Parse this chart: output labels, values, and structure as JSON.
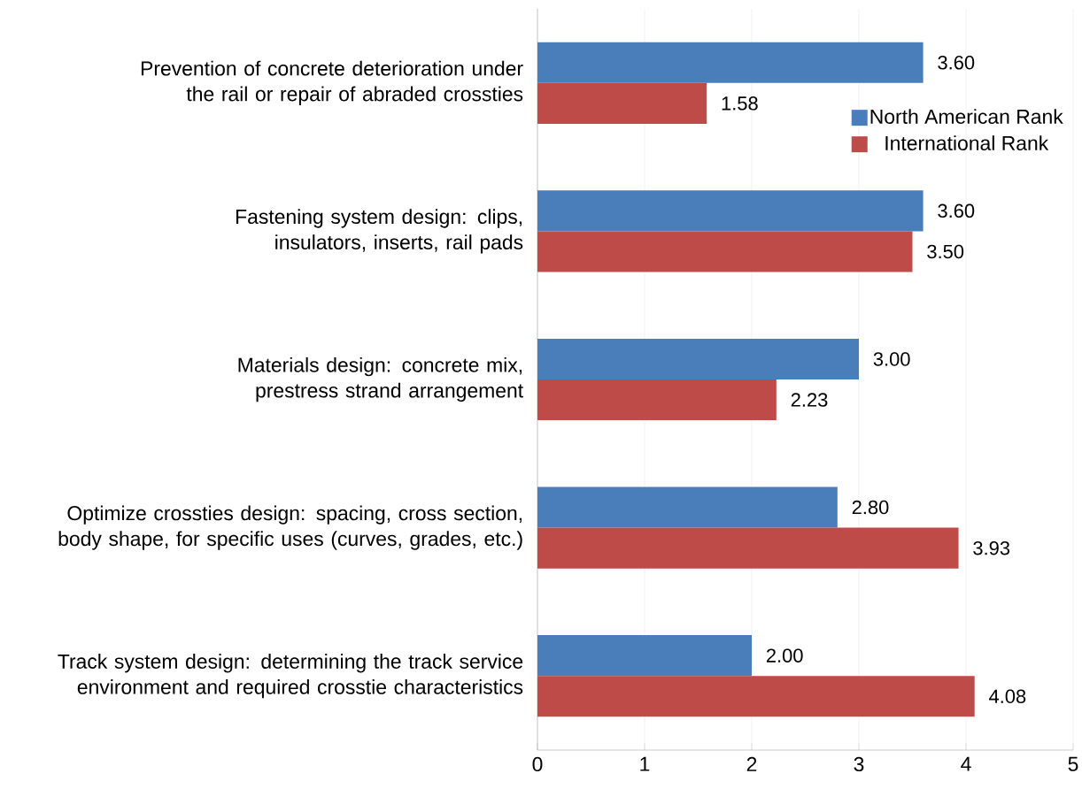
{
  "chart_data": {
    "type": "bar",
    "orientation": "horizontal",
    "categories": [
      "Prevention of concrete deterioration under the rail or repair of abraded crossties",
      "Fastening system design: clips, insulators, inserts, rail pads",
      "Materials design: concrete mix, prestress strand arrangement",
      "Optimize crossties design: spacing, cross section, body shape, for specific uses (curves, grades, etc.)",
      "Track system design: determining the track service environment and required crosstie characteristics"
    ],
    "series": [
      {
        "name": "North American Rank",
        "color": "#4a7ebb",
        "values": [
          3.6,
          3.6,
          3.0,
          2.8,
          2.0
        ],
        "value_labels": [
          "3.60",
          "3.60",
          "3.00",
          "2.80",
          "2.00"
        ]
      },
      {
        "name": "International Rank",
        "color": "#be4b48",
        "values": [
          1.58,
          3.5,
          2.23,
          3.93,
          4.08
        ],
        "value_labels": [
          "1.58",
          "3.50",
          "2.23",
          "3.93",
          "4.08"
        ]
      }
    ],
    "xlim": [
      0,
      5
    ],
    "xticks": [
      0,
      1,
      2,
      3,
      4,
      5
    ],
    "grid": "x",
    "legend": "top right"
  }
}
